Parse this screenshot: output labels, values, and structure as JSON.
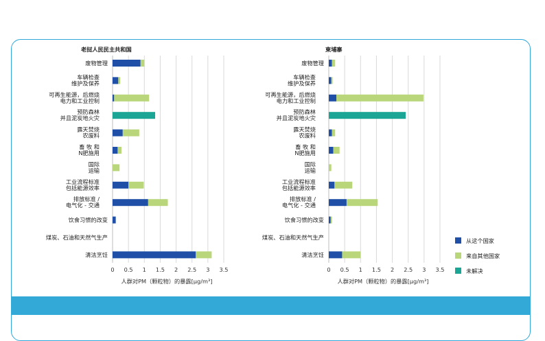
{
  "colors": {
    "from_country": "#1f4fa6",
    "from_other": "#b9d77a",
    "unresolved": "#1aa594",
    "grid": "#d9d9d9",
    "frame": "#2ea6d9"
  },
  "legend": {
    "items": [
      "从这个国家",
      "来自其他国家",
      "未解决"
    ]
  },
  "chart_data": [
    {
      "type": "bar",
      "orientation": "horizontal",
      "stacked": true,
      "title": "老挝人民民主共和国",
      "xlabel": "人群对PM（颗粒物）的暴露[μg/m³]",
      "xlim": [
        0,
        3.5
      ],
      "xticks": [
        "0",
        "0.5",
        "1",
        "1.5",
        "2",
        "2.5",
        "3",
        "3.5"
      ],
      "categories": [
        [
          "废物管理"
        ],
        [
          "车辆检查",
          "维护及保养"
        ],
        [
          "可再生能源，后燃烧",
          "电力和工业控制"
        ],
        [
          "预防森林",
          "并且泥炭地火灾"
        ],
        [
          "露天焚烧",
          "农废料"
        ],
        [
          "畜 牧 和",
          "N肥施用"
        ],
        [
          "国际",
          "运输"
        ],
        [
          "工业流程标准",
          "包括能源效率"
        ],
        [
          "排放标准 /",
          "电气化 - 交通"
        ],
        [
          "饮食习惯的改变"
        ],
        [
          "煤炭、石油和天然气生产"
        ],
        [
          "清洁烹饪"
        ]
      ],
      "series": [
        {
          "name": "从这个国家",
          "values": [
            0.88,
            0.18,
            0.05,
            0,
            0.32,
            0.16,
            0,
            0.5,
            1.12,
            0.1,
            0,
            2.62
          ]
        },
        {
          "name": "来自其他国家",
          "values": [
            0.12,
            0.06,
            1.1,
            0,
            0.52,
            0.12,
            0.22,
            0.48,
            0.62,
            0,
            0,
            0.5
          ]
        },
        {
          "name": "未解决",
          "values": [
            0,
            0,
            0,
            1.34,
            0,
            0,
            0,
            0,
            0,
            0,
            0,
            0
          ]
        }
      ]
    },
    {
      "type": "bar",
      "orientation": "horizontal",
      "stacked": true,
      "title": "柬埔寨",
      "xlabel": "人群对PM（颗粒物）的暴露[μg/m³]",
      "xlim": [
        0,
        3.5
      ],
      "xticks": [
        "0",
        "0.5",
        "1",
        "1.5",
        "2",
        "2.5",
        "3",
        "3.5"
      ],
      "categories": [
        [
          "废物管理"
        ],
        [
          "车辆检查",
          "维护及保养"
        ],
        [
          "可再生能源，后燃烧",
          "电力和工业控制"
        ],
        [
          "预防森林",
          "并且泥炭地火灾"
        ],
        [
          "露天焚烧",
          "农废料"
        ],
        [
          "畜 牧 和",
          "N肥施用"
        ],
        [
          "国际",
          "运输"
        ],
        [
          "工业流程标准",
          "包括能源效率"
        ],
        [
          "排放标准 /",
          "电气化 - 交通"
        ],
        [
          "饮食习惯的改变"
        ],
        [
          "煤炭、石油和天然气生产"
        ],
        [
          "清洁烹饪"
        ]
      ],
      "series": [
        {
          "name": "从这个国家",
          "values": [
            0.1,
            0.08,
            0.24,
            0,
            0.1,
            0.14,
            0,
            0.18,
            0.56,
            0.06,
            0,
            0.42
          ]
        },
        {
          "name": "来自其他国家",
          "values": [
            0.1,
            0.04,
            2.74,
            0,
            0.1,
            0.2,
            0.08,
            0.56,
            0.98,
            0.04,
            0,
            0.58
          ]
        },
        {
          "name": "未解决",
          "values": [
            0,
            0,
            0,
            2.42,
            0,
            0,
            0,
            0,
            0,
            0,
            0,
            0
          ]
        }
      ]
    }
  ]
}
